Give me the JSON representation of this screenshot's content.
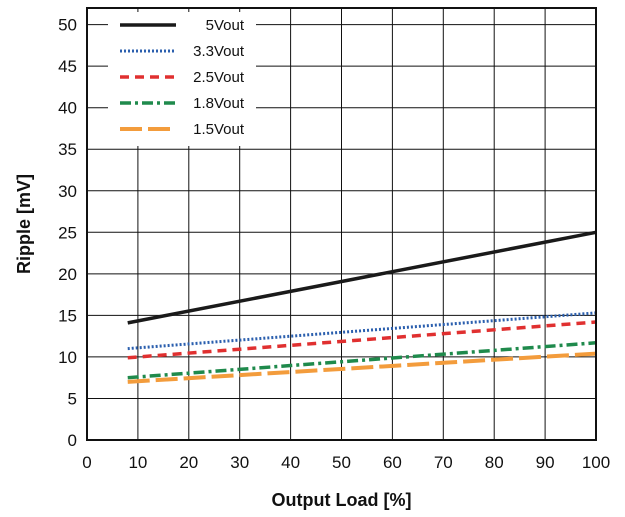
{
  "chart_data": {
    "type": "line",
    "title": "",
    "xlabel": "Output Load [%]",
    "ylabel": "Ripple [mV]",
    "xlim": [
      0,
      100
    ],
    "ylim": [
      0,
      52
    ],
    "x_ticks": [
      0,
      10,
      20,
      30,
      40,
      50,
      60,
      70,
      80,
      90,
      100
    ],
    "y_ticks": [
      0,
      5,
      10,
      15,
      20,
      25,
      30,
      35,
      40,
      45,
      50
    ],
    "grid": true,
    "legend_position": "top-left",
    "series": [
      {
        "name": "5Vout",
        "color": "#1a1a1a",
        "style": "solid",
        "x": [
          8,
          100
        ],
        "y": [
          14.1,
          25.0
        ]
      },
      {
        "name": "3.3Vout",
        "color": "#2b5fae",
        "style": "dotted",
        "x": [
          8,
          100
        ],
        "y": [
          11.0,
          15.3
        ]
      },
      {
        "name": "2.5Vout",
        "color": "#e03030",
        "style": "dashed",
        "x": [
          8,
          100
        ],
        "y": [
          9.9,
          14.2
        ]
      },
      {
        "name": "1.8Vout",
        "color": "#1f8a4c",
        "style": "dash-dot",
        "x": [
          8,
          100
        ],
        "y": [
          7.5,
          11.7
        ]
      },
      {
        "name": "1.5Vout",
        "color": "#f39c3c",
        "style": "long-dash",
        "x": [
          8,
          100
        ],
        "y": [
          7.0,
          10.4
        ]
      }
    ]
  }
}
